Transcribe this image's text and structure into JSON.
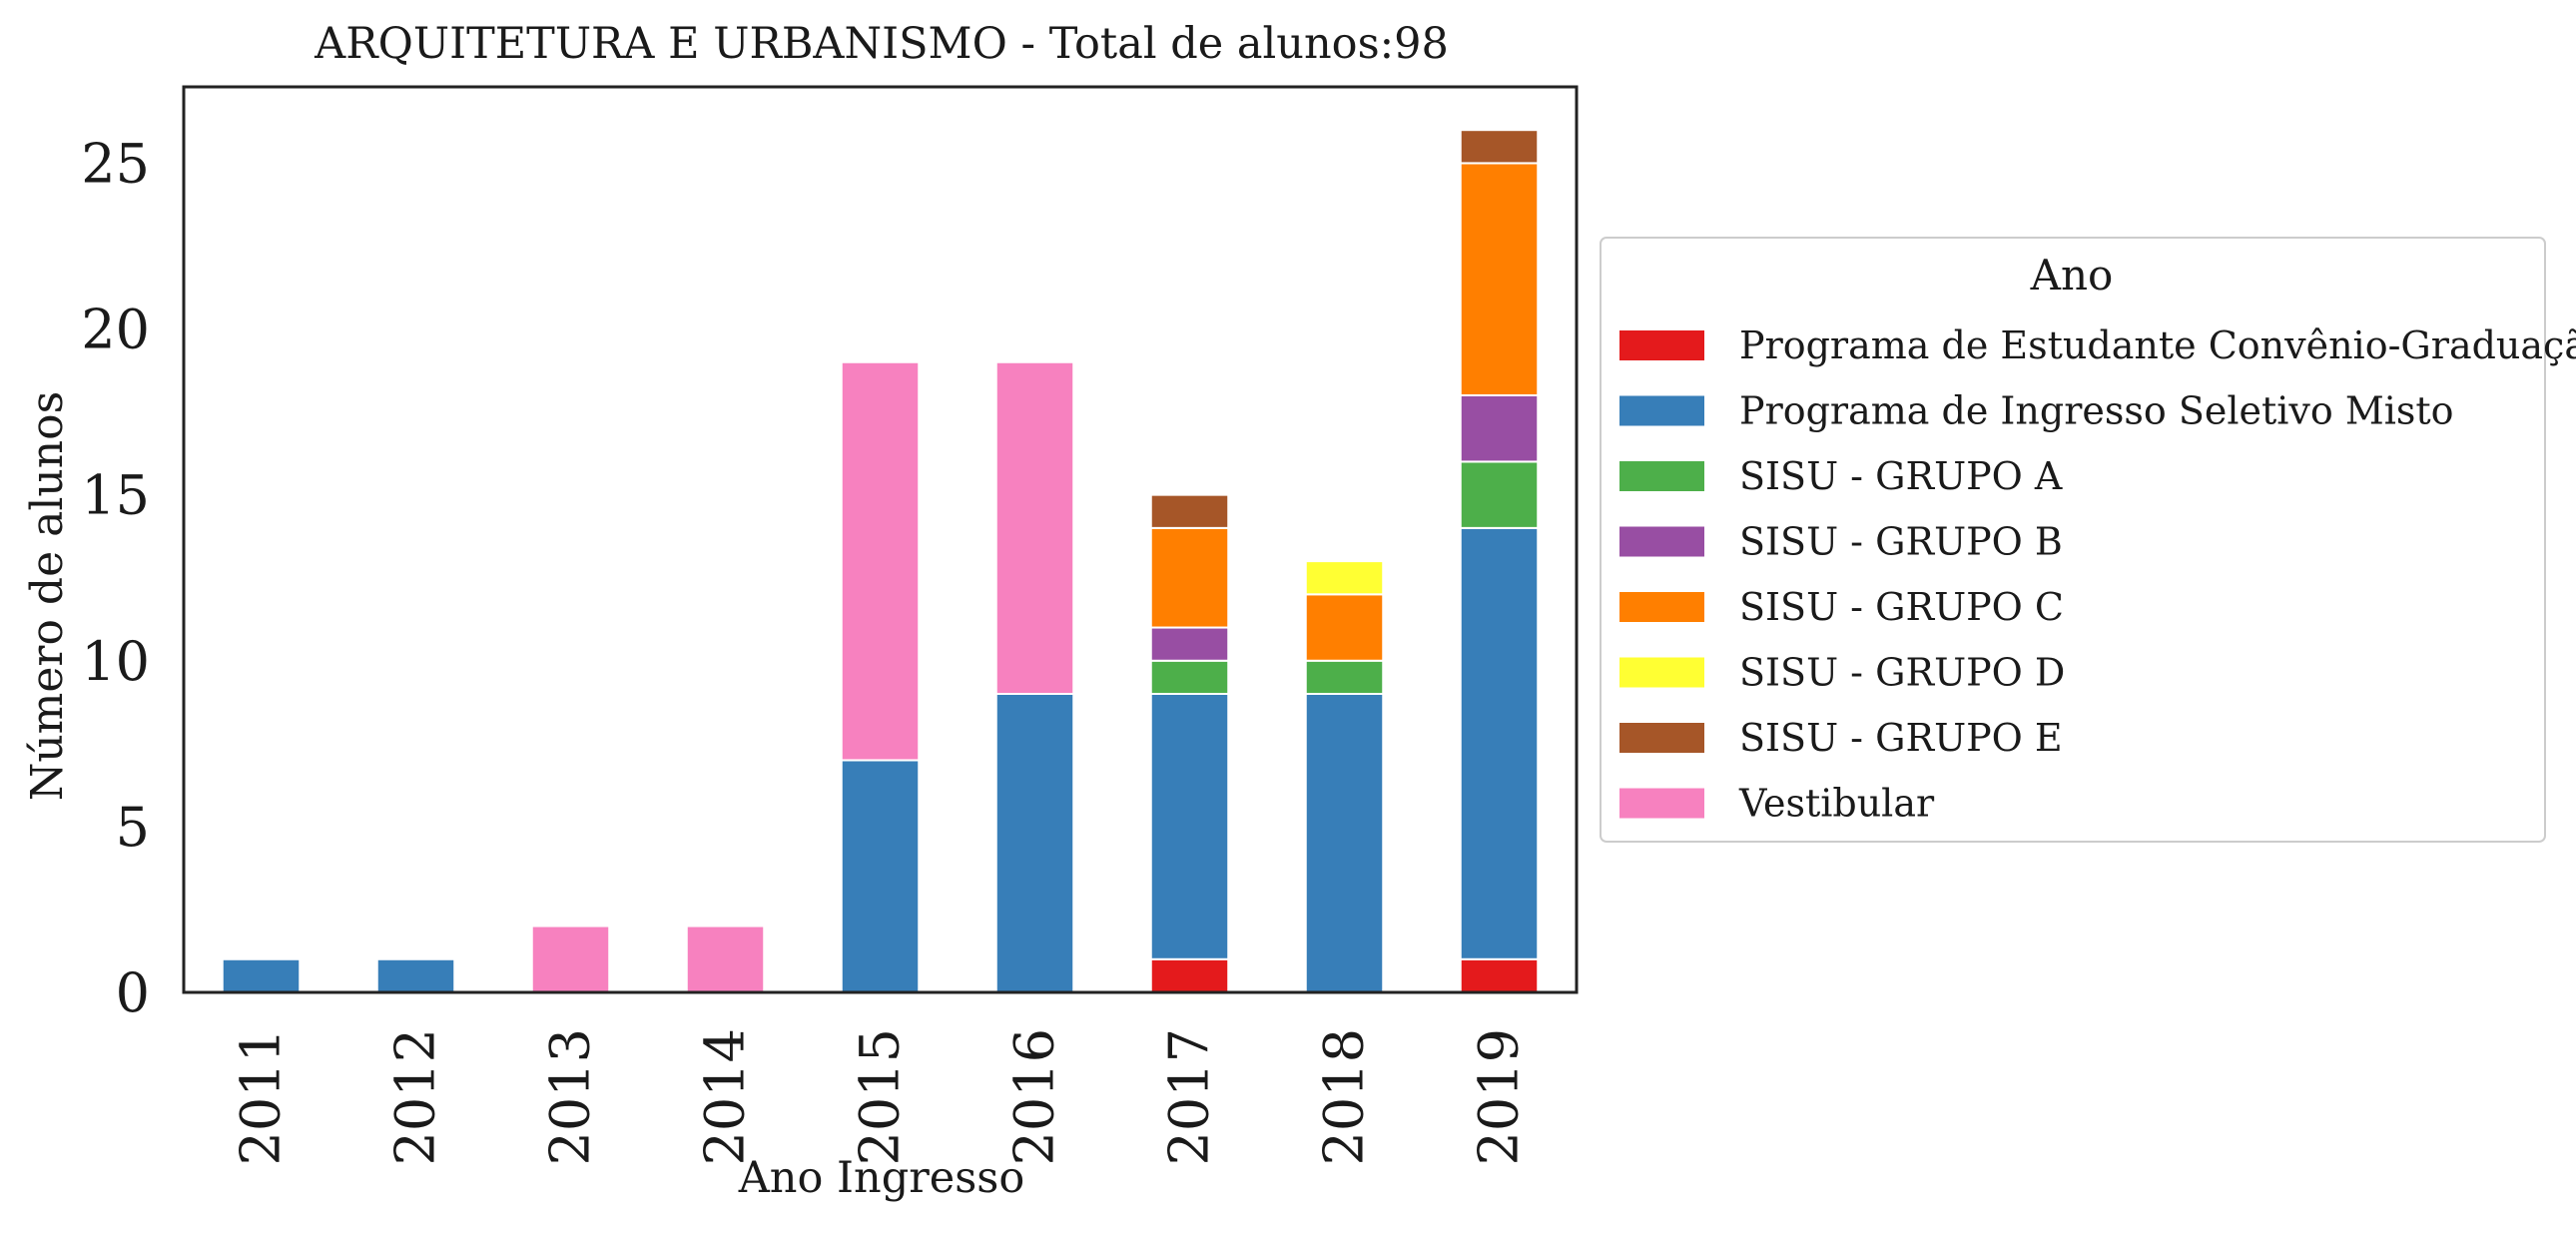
{
  "chart_data": {
    "type": "bar",
    "stacked": true,
    "title": "ARQUITETURA E URBANISMO - Total de alunos:98",
    "xlabel": "Ano Ingresso",
    "ylabel": "Número de alunos",
    "ylim": [
      0,
      27.3
    ],
    "yticks": [
      0,
      5,
      10,
      15,
      20,
      25
    ],
    "grid": false,
    "legend_title": "Ano",
    "legend_position": "outside-right",
    "categories": [
      "2011",
      "2012",
      "2013",
      "2014",
      "2015",
      "2016",
      "2017",
      "2018",
      "2019"
    ],
    "series": [
      {
        "name": "Programa de Estudante Convênio-Graduação",
        "color": "#e41a1c",
        "values": [
          0,
          0,
          0,
          0,
          0,
          0,
          1,
          0,
          1
        ]
      },
      {
        "name": "Programa de Ingresso Seletivo Misto",
        "color": "#377eb8",
        "values": [
          1,
          1,
          0,
          0,
          7,
          9,
          8,
          9,
          13
        ]
      },
      {
        "name": "SISU - GRUPO A",
        "color": "#4daf4a",
        "values": [
          0,
          0,
          0,
          0,
          0,
          0,
          1,
          1,
          2
        ]
      },
      {
        "name": "SISU - GRUPO B",
        "color": "#984ea3",
        "values": [
          0,
          0,
          0,
          0,
          0,
          0,
          1,
          0,
          2
        ]
      },
      {
        "name": "SISU - GRUPO C",
        "color": "#ff7f00",
        "values": [
          0,
          0,
          0,
          0,
          0,
          0,
          3,
          2,
          7
        ]
      },
      {
        "name": "SISU - GRUPO D",
        "color": "#ffff33",
        "values": [
          0,
          0,
          0,
          0,
          0,
          0,
          0,
          1,
          0
        ]
      },
      {
        "name": "SISU - GRUPO E",
        "color": "#a65628",
        "values": [
          0,
          0,
          0,
          0,
          0,
          0,
          1,
          0,
          1
        ]
      },
      {
        "name": "Vestibular",
        "color": "#f781bf",
        "values": [
          0,
          0,
          2,
          2,
          12,
          10,
          0,
          0,
          0
        ]
      }
    ]
  }
}
